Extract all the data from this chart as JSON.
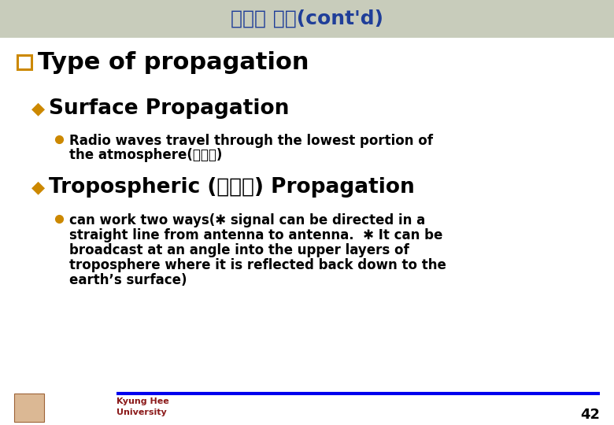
{
  "title": "비유도 매체(cont'd)",
  "title_color": "#1F3E99",
  "title_bg_color": "#C8CCBB",
  "bg_color": "#FFFFFF",
  "bullet1_text": "Type of propagation",
  "bullet1_marker_color": "#CC8800",
  "bullet1_text_color": "#000000",
  "bullet2_marker": "◆",
  "bullet2a_text": "Surface Propagation",
  "bullet2b_text": "Tropospheric (대류권) Propagation",
  "bullet2_marker_color": "#CC8800",
  "bullet3_marker_color": "#CC8800",
  "bullet3a_line1": "Radio waves travel through the lowest portion of",
  "bullet3a_line2": "the atmosphere(대기권)",
  "bullet3b_line1": "can work two ways(✱ signal can be directed in a",
  "bullet3b_line2": "straight line from antenna to antenna.  ✱ It can be",
  "bullet3b_line3": "broadcast at an angle into the upper layers of",
  "bullet3b_line4": "troposphere where it is reflected back down to the",
  "bullet3b_line5": "earth’s surface)",
  "footer_text1": "Kyung Hee",
  "footer_text2": "University",
  "footer_color": "#8B1A1A",
  "page_number": "42",
  "line_color": "#0000EE"
}
